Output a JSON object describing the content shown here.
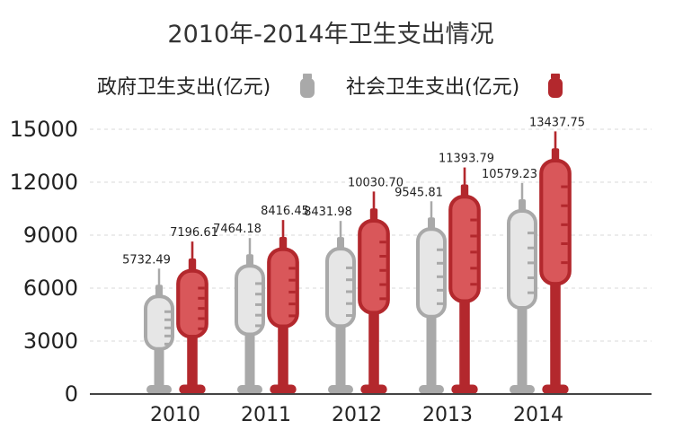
{
  "chart_data": {
    "type": "bar",
    "title": "2010年-2014年卫生支出情况",
    "categories": [
      "2010",
      "2011",
      "2012",
      "2013",
      "2014"
    ],
    "series": [
      {
        "name": "政府卫生支出(亿元)",
        "values": [
          5732.49,
          7464.18,
          8431.98,
          9545.81,
          10579.23
        ]
      },
      {
        "name": "社会卫生支出(亿元)",
        "values": [
          7196.61,
          8416.45,
          10030.7,
          11393.79,
          13437.75
        ]
      }
    ],
    "data_labels": {
      "series0": [
        "5732.49",
        "7464.18",
        "8431.98",
        "9545.81",
        "10579.23"
      ],
      "series1": [
        "7196.61",
        "8416.45",
        "10030.70",
        "11393.79",
        "13437.75"
      ]
    },
    "yticks": [
      "0",
      "3000",
      "6000",
      "9000",
      "12000",
      "15000"
    ],
    "ylim": [
      0,
      15000
    ],
    "grid": true,
    "legend_position": "top",
    "colors": {
      "gov_body": "#e6e6e6",
      "gov_outline": "#a9a9a9",
      "soc_body": "#d9575a",
      "soc_outline": "#b3282d"
    },
    "mark_style": "syringe-icon"
  }
}
